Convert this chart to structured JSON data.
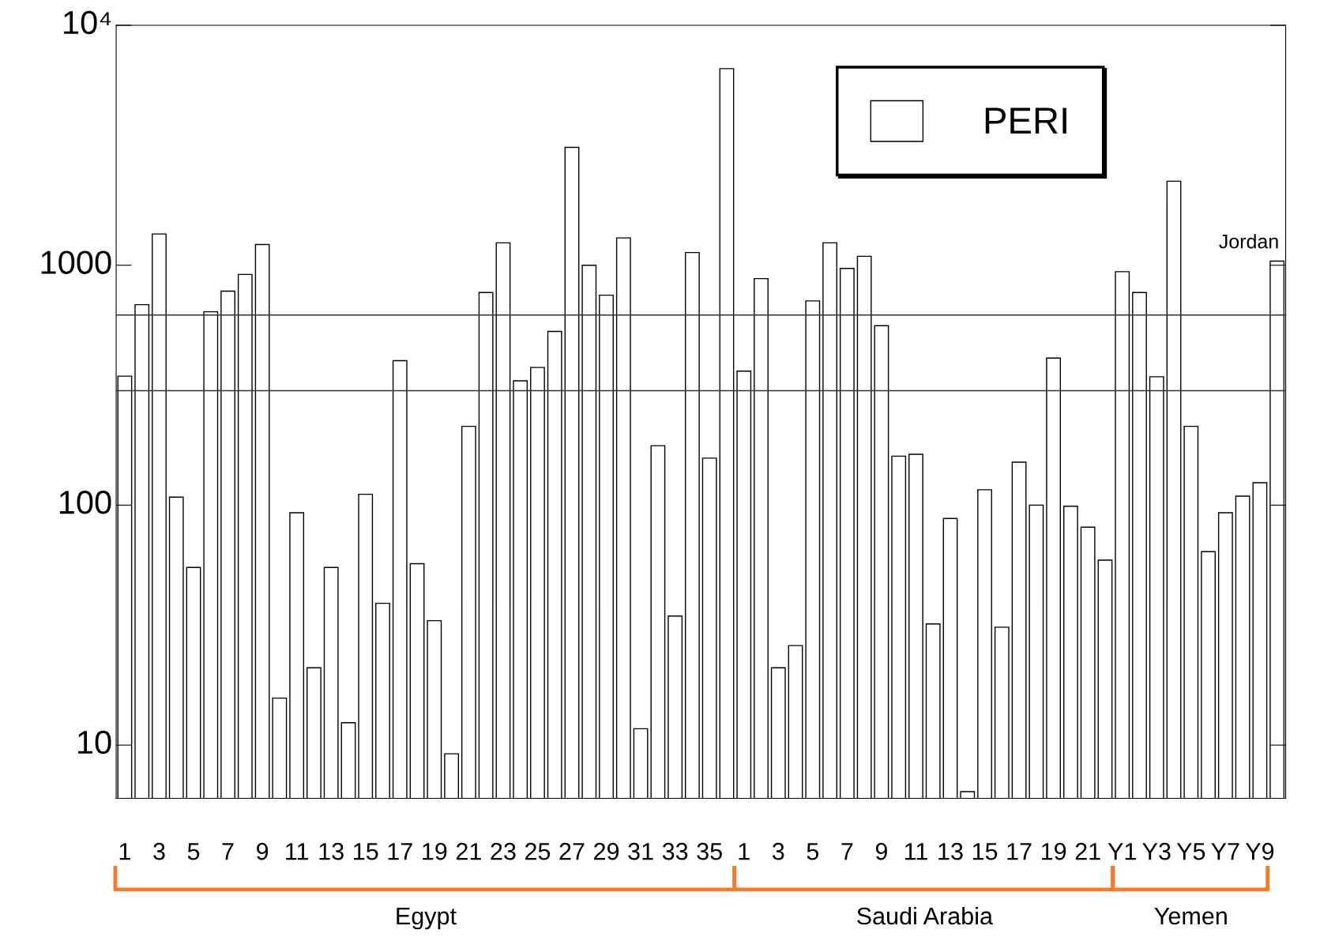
{
  "chart_data": {
    "type": "bar",
    "log": true,
    "categories": [
      "1",
      null,
      "3",
      null,
      "5",
      null,
      "7",
      null,
      "9",
      null,
      "11",
      null,
      "13",
      null,
      "15",
      null,
      "17",
      null,
      "19",
      null,
      "21",
      null,
      "23",
      null,
      "25",
      null,
      "27",
      null,
      "29",
      null,
      "31",
      null,
      "33",
      null,
      "35",
      null,
      "1",
      null,
      "3",
      null,
      "5",
      null,
      "7",
      null,
      "9",
      null,
      "11",
      null,
      "13",
      null,
      "15",
      null,
      "17",
      null,
      "19",
      null,
      "21",
      null,
      "Y1",
      null,
      "Y3",
      null,
      "Y5",
      null,
      "Y7",
      null,
      "Y9",
      null
    ],
    "series": [
      {
        "name": "PERI",
        "color": "#ffffff",
        "values": [
          345,
          685,
          1350,
          108,
          55,
          640,
          780,
          915,
          1220,
          15.7,
          93,
          21,
          55,
          12.4,
          111,
          39,
          400,
          57,
          33,
          9.2,
          213,
          770,
          1240,
          330,
          375,
          530,
          3100,
          1000,
          750,
          1300,
          11.7,
          177,
          34.5,
          1130,
          157,
          6600,
          362,
          880,
          21,
          26,
          710,
          1240,
          970,
          1090,
          560,
          160,
          163,
          32,
          88,
          6.4,
          116,
          31,
          151,
          100,
          410,
          99,
          81,
          59,
          940,
          770,
          343,
          2240,
          213,
          64,
          93,
          109,
          124,
          1040
        ]
      }
    ],
    "ylim": [
      6,
      10000
    ],
    "yticks": [
      10,
      100,
      1000,
      {
        "value": 10000,
        "label": "10⁴"
      }
    ],
    "ref_lines": [
      {
        "axis": "y",
        "value": 620,
        "color": "#333333"
      },
      {
        "axis": "y",
        "value": 300,
        "color": "#333333"
      }
    ],
    "annotations": [
      "Egypt",
      "Saudi Arabia",
      "Yemen",
      "Jordan"
    ],
    "legend": "top right",
    "grid": false
  }
}
